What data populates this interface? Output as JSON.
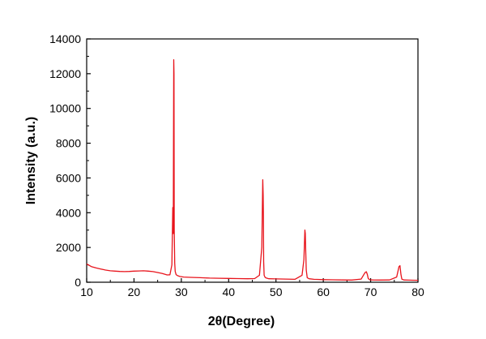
{
  "chart_data": {
    "type": "line",
    "title": "",
    "xlabel": "2θ(Degree)",
    "ylabel": "Intensity (a.u.)",
    "xlim": [
      10,
      80
    ],
    "ylim": [
      0,
      14000
    ],
    "x_ticks": [
      10,
      20,
      30,
      40,
      50,
      60,
      70,
      80
    ],
    "y_ticks": [
      0,
      2000,
      4000,
      6000,
      8000,
      10000,
      12000,
      14000
    ],
    "grid": false,
    "legend": "none",
    "series": [
      {
        "color": "#e8141c",
        "x": [
          10,
          11,
          12,
          13,
          14,
          15,
          16,
          17,
          18,
          19,
          20,
          21,
          22,
          23,
          24,
          25,
          26,
          27,
          27.6,
          28.0,
          28.2,
          28.3,
          28.4,
          28.45,
          28.5,
          28.6,
          28.7,
          28.9,
          29.2,
          29.7,
          30.5,
          32,
          34,
          36,
          38,
          40,
          42,
          44,
          45.5,
          46.5,
          47.0,
          47.2,
          47.3,
          47.35,
          47.4,
          47.5,
          47.7,
          48.0,
          48.5,
          50,
          52,
          54,
          55.5,
          55.9,
          56.1,
          56.2,
          56.3,
          56.4,
          56.6,
          57.0,
          58,
          60,
          62,
          64,
          66,
          68,
          68.8,
          69.1,
          69.3,
          69.5,
          69.8,
          70.5,
          72,
          74,
          75.5,
          76.0,
          76.2,
          76.4,
          76.6,
          77.0,
          78,
          80
        ],
        "y": [
          1050,
          900,
          820,
          760,
          700,
          660,
          640,
          620,
          610,
          620,
          640,
          650,
          660,
          640,
          610,
          560,
          500,
          420,
          430,
          1000,
          4300,
          2800,
          12800,
          12000,
          3000,
          1100,
          620,
          440,
          380,
          330,
          300,
          280,
          260,
          240,
          230,
          220,
          210,
          200,
          210,
          400,
          2000,
          5900,
          5000,
          3800,
          1200,
          400,
          280,
          240,
          200,
          190,
          180,
          170,
          400,
          1300,
          3000,
          2800,
          1700,
          700,
          260,
          200,
          170,
          150,
          140,
          130,
          125,
          180,
          550,
          600,
          450,
          220,
          140,
          130,
          125,
          130,
          300,
          900,
          950,
          450,
          180,
          130,
          120,
          110
        ]
      }
    ]
  }
}
